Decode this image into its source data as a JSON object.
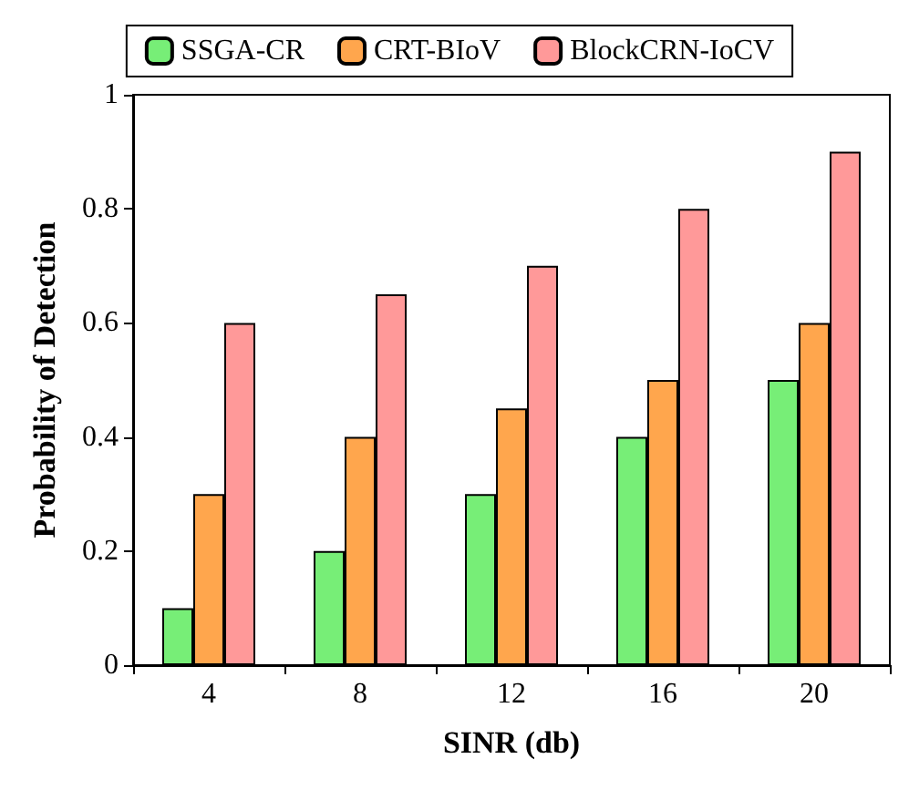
{
  "chart_data": {
    "type": "bar",
    "xlabel": "SINR (db)",
    "ylabel": "Probability of Detection",
    "categories": [
      "4",
      "8",
      "12",
      "16",
      "20"
    ],
    "series": [
      {
        "name": "SSGA-CR",
        "color": "#77ee77",
        "values": [
          0.1,
          0.2,
          0.3,
          0.4,
          0.5
        ]
      },
      {
        "name": "CRT-BIoV",
        "color": "#ffa64d",
        "values": [
          0.3,
          0.4,
          0.45,
          0.5,
          0.6
        ]
      },
      {
        "name": "BlockCRN-IoCV",
        "color": "#ff9999",
        "values": [
          0.6,
          0.65,
          0.7,
          0.8,
          0.9
        ]
      }
    ],
    "ylim": [
      0,
      1
    ],
    "yticks": [
      0,
      0.2,
      0.4,
      0.6,
      0.8,
      1
    ],
    "grid": false,
    "legend": "top"
  }
}
